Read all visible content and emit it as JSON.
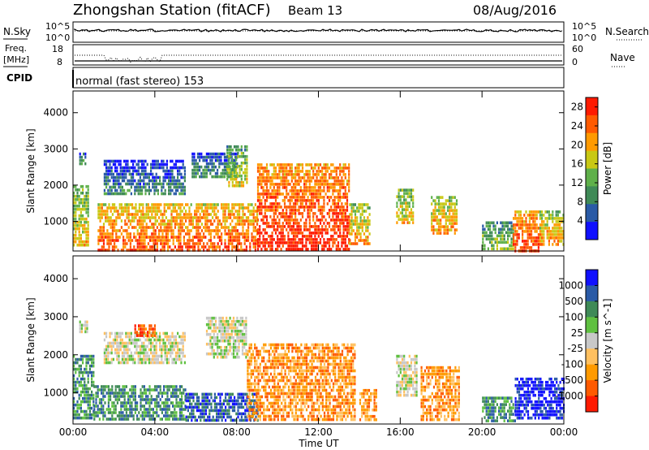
{
  "header": {
    "station": "Zhongshan Station (fitACF)",
    "beam": "Beam 13",
    "date": "08/Aug/2016"
  },
  "strips": {
    "nsky_label": "N.Sky",
    "nsky_ticks": [
      "10^5",
      "10^0"
    ],
    "nsearch_label": "N.Search",
    "nsearch_ticks": [
      "10^5",
      "10^0"
    ],
    "freq_label_1": "Freq.",
    "freq_label_2": "[MHz]",
    "freq_ticks": [
      "18",
      "8"
    ],
    "nave_label": "Nave",
    "nave_ticks": [
      "60",
      "0"
    ],
    "cpid_label": "CPID",
    "cpid_text": "normal (fast stereo) 153"
  },
  "colors": {
    "power": [
      "#1010ff",
      "#2a5aa6",
      "#3f8a57",
      "#5fb04a",
      "#c8c814",
      "#ff9a00",
      "#ff5a00",
      "#ff1a00"
    ],
    "velocity": [
      "#ff1a00",
      "#ff5a00",
      "#ff9a00",
      "#ffc060",
      "#c8c8c8",
      "#5fc040",
      "#3f8a57",
      "#2a5aa6",
      "#1010ff"
    ]
  },
  "chart_data": [
    {
      "type": "heatmap",
      "name": "power",
      "ylabel": "Slant Range [km]",
      "xlabel": "",
      "xticks": [
        "00:00",
        "04:00",
        "08:00",
        "12:00",
        "16:00",
        "20:00",
        "00:00"
      ],
      "yticks": [
        1000,
        2000,
        3000,
        4000
      ],
      "ylim": [
        180,
        4600
      ],
      "xlim_hours": [
        0,
        24
      ],
      "colorbar_label": "Power [dB]",
      "colorbar_ticks": [
        4,
        8,
        12,
        16,
        20,
        24,
        28
      ],
      "colorbar_range": [
        0,
        30
      ],
      "regions": [
        {
          "t0": 0.0,
          "t1": 0.7,
          "r0": 300,
          "r1": 2000,
          "level": 16
        },
        {
          "t0": 0.3,
          "t1": 0.6,
          "r0": 2600,
          "r1": 2900,
          "level": 8
        },
        {
          "t0": 1.2,
          "t1": 9.0,
          "r0": 200,
          "r1": 1500,
          "level": 22
        },
        {
          "t0": 1.5,
          "t1": 5.5,
          "r0": 1800,
          "r1": 2700,
          "level": 6
        },
        {
          "t0": 5.8,
          "t1": 8.0,
          "r0": 2200,
          "r1": 2900,
          "level": 8
        },
        {
          "t0": 7.5,
          "t1": 8.5,
          "r0": 2000,
          "r1": 3100,
          "level": 14
        },
        {
          "t0": 9.0,
          "t1": 13.5,
          "r0": 200,
          "r1": 2600,
          "level": 25
        },
        {
          "t0": 13.5,
          "t1": 14.5,
          "r0": 400,
          "r1": 1500,
          "level": 18
        },
        {
          "t0": 15.8,
          "t1": 16.6,
          "r0": 1000,
          "r1": 1900,
          "level": 16
        },
        {
          "t0": 17.5,
          "t1": 18.8,
          "r0": 700,
          "r1": 1700,
          "level": 18
        },
        {
          "t0": 20.0,
          "t1": 21.5,
          "r0": 200,
          "r1": 1000,
          "level": 12
        },
        {
          "t0": 21.5,
          "t1": 22.8,
          "r0": 200,
          "r1": 1300,
          "level": 24
        },
        {
          "t0": 22.8,
          "t1": 24.0,
          "r0": 400,
          "r1": 1300,
          "level": 18
        }
      ]
    },
    {
      "type": "heatmap",
      "name": "velocity",
      "ylabel": "Slant Range [km]",
      "xlabel": "Time UT",
      "xticks": [
        "00:00",
        "04:00",
        "08:00",
        "12:00",
        "16:00",
        "20:00",
        "00:00"
      ],
      "yticks": [
        1000,
        2000,
        3000,
        4000
      ],
      "ylim": [
        180,
        4600
      ],
      "xlim_hours": [
        0,
        24
      ],
      "colorbar_label": "Velocity [m s^-1]",
      "colorbar_ticks": [
        "1000",
        "500",
        "100",
        "25",
        "-25",
        "-100",
        "-500",
        "-1000"
      ],
      "regions": [
        {
          "t0": 0.0,
          "t1": 1.0,
          "r0": 300,
          "r1": 2000,
          "level": 6
        },
        {
          "t0": 0.3,
          "t1": 0.7,
          "r0": 2600,
          "r1": 2900,
          "level": 4
        },
        {
          "t0": 1.0,
          "t1": 5.5,
          "r0": 300,
          "r1": 1200,
          "level": 6
        },
        {
          "t0": 1.5,
          "t1": 5.5,
          "r0": 1800,
          "r1": 2600,
          "level": 4
        },
        {
          "t0": 3.0,
          "t1": 4.0,
          "r0": 2500,
          "r1": 2800,
          "level": 1
        },
        {
          "t0": 5.5,
          "t1": 9.0,
          "r0": 300,
          "r1": 1000,
          "level": 7
        },
        {
          "t0": 6.5,
          "t1": 8.5,
          "r0": 1900,
          "r1": 3000,
          "level": 4
        },
        {
          "t0": 8.5,
          "t1": 13.8,
          "r0": 300,
          "r1": 2300,
          "level": 2
        },
        {
          "t0": 14.0,
          "t1": 14.8,
          "r0": 300,
          "r1": 1100,
          "level": 2
        },
        {
          "t0": 15.8,
          "t1": 16.8,
          "r0": 900,
          "r1": 2000,
          "level": 4
        },
        {
          "t0": 17.0,
          "t1": 18.9,
          "r0": 300,
          "r1": 1700,
          "level": 2
        },
        {
          "t0": 20.0,
          "t1": 21.6,
          "r0": 250,
          "r1": 900,
          "level": 6
        },
        {
          "t0": 21.6,
          "t1": 24.0,
          "r0": 300,
          "r1": 1400,
          "level": 8
        }
      ]
    }
  ]
}
